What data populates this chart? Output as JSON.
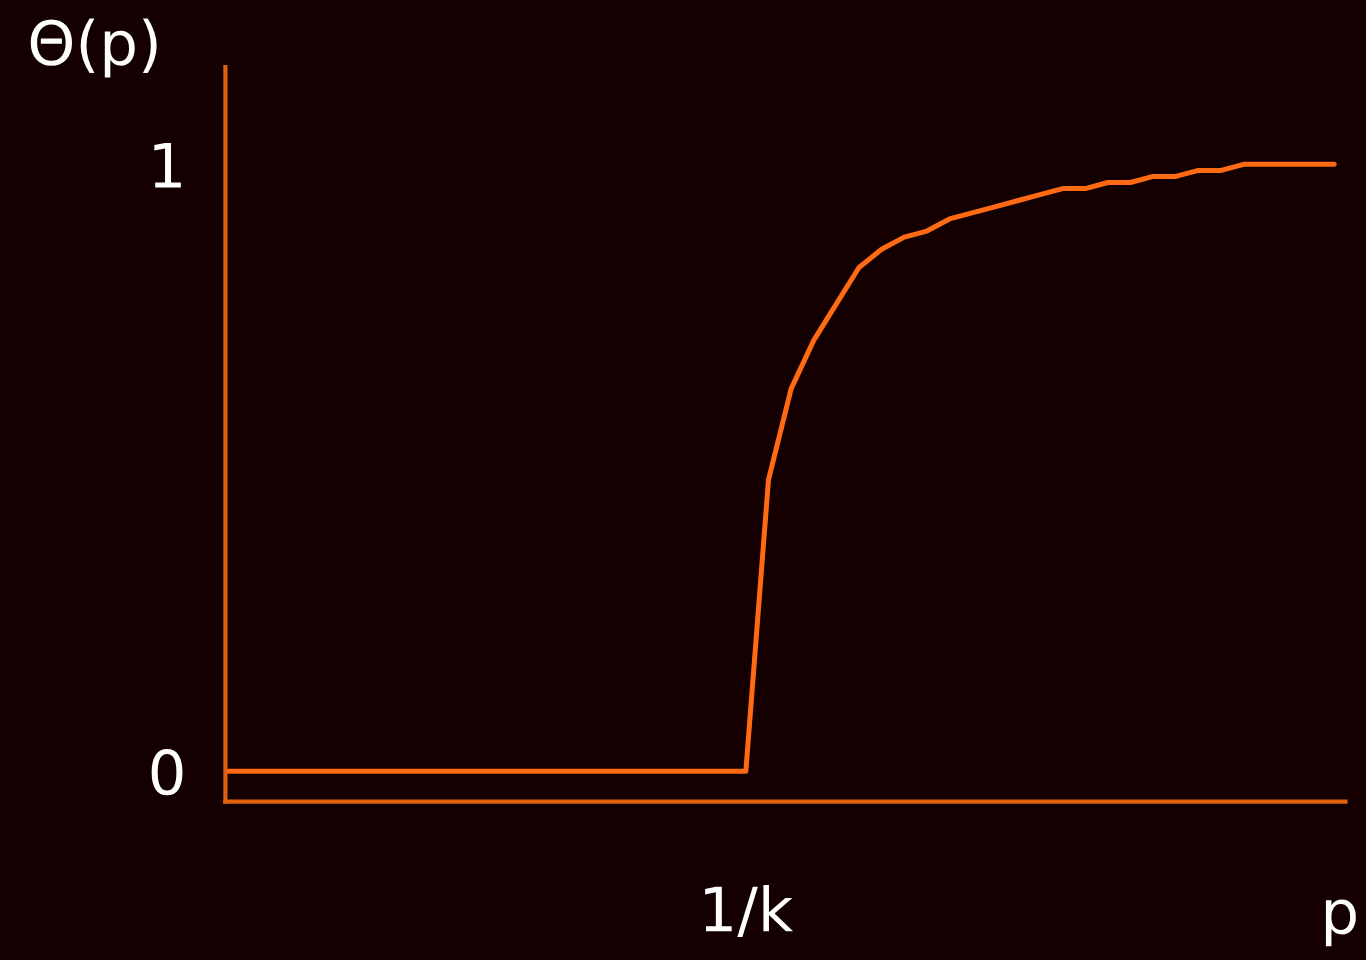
{
  "chart_data": {
    "type": "line",
    "ylabel": "Θ(p)",
    "xlabel": "p",
    "categories": [
      null,
      null,
      null,
      null,
      null,
      null,
      null,
      null,
      null,
      null,
      null,
      null,
      null,
      null,
      null,
      null,
      null,
      null,
      null,
      null,
      null,
      null,
      null,
      "1/k",
      null,
      null,
      null,
      null,
      null,
      null,
      null,
      null,
      null,
      null,
      null,
      null,
      null,
      null,
      null,
      null,
      null,
      null,
      null,
      null,
      null,
      null,
      null,
      null,
      null,
      null
    ],
    "series": [
      {
        "color": "#ff6a13",
        "values": [
          0,
          0,
          0,
          0,
          0,
          0,
          0,
          0,
          0,
          0,
          0,
          0,
          0,
          0,
          0,
          0,
          0,
          0,
          0,
          0,
          0,
          0,
          0,
          0,
          0.48,
          0.63,
          0.71,
          0.77,
          0.83,
          0.86,
          0.88,
          0.89,
          0.91,
          0.92,
          0.93,
          0.94,
          0.95,
          0.96,
          0.96,
          0.97,
          0.97,
          0.98,
          0.98,
          0.99,
          0.99,
          1.0,
          1.0,
          1.0,
          1.0,
          1.0
        ]
      }
    ],
    "ylim": [
      -0.05,
      1.16
    ],
    "yticks": [
      0,
      1
    ],
    "grid": false,
    "legend": false,
    "marker": "none",
    "line_style": "solid"
  }
}
